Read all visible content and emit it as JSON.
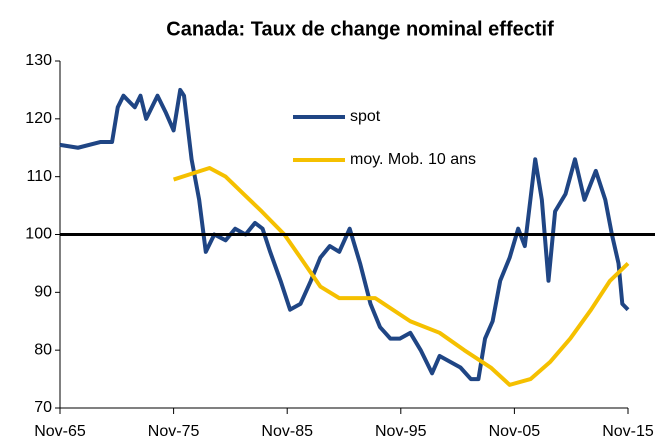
{
  "chart_data": {
    "type": "line",
    "title": "Canada: Taux de change nominal effectif",
    "series": [
      {
        "name": "spot",
        "color": "#1f4584",
        "x": [
          "1965-11",
          "1967-06",
          "1969-06",
          "1970-06",
          "1970-12",
          "1971-06",
          "1972-06",
          "1972-12",
          "1973-06",
          "1974-06",
          "1975-03",
          "1975-11",
          "1976-06",
          "1976-10",
          "1977-06",
          "1978-02",
          "1978-09",
          "1979-06",
          "1980-06",
          "1981-04",
          "1982-03",
          "1983-01",
          "1983-09",
          "1984-05",
          "1985-04",
          "1986-02",
          "1987-01",
          "1987-12",
          "1988-10",
          "1989-08",
          "1990-06",
          "1991-05",
          "1992-04",
          "1993-03",
          "1994-01",
          "1994-12",
          "1995-10",
          "1996-09",
          "1997-08",
          "1998-08",
          "1999-04",
          "2000-03",
          "2001-02",
          "2002-01",
          "2002-09",
          "2003-04",
          "2003-12",
          "2004-08",
          "2005-06",
          "2006-03",
          "2006-10",
          "2007-09",
          "2008-04",
          "2008-11",
          "2009-06",
          "2010-05",
          "2011-03",
          "2012-01",
          "2013-01",
          "2013-11",
          "2014-06",
          "2015-01",
          "2015-05",
          "2015-11"
        ],
        "values": [
          115.5,
          115,
          116,
          116,
          122,
          124,
          122,
          124,
          120,
          124,
          121,
          118,
          125,
          124,
          113,
          106,
          97,
          100,
          99,
          101,
          100,
          102,
          101,
          97,
          92,
          87,
          88,
          92,
          96,
          98,
          97,
          101,
          95,
          88,
          84,
          82,
          82,
          83,
          80,
          76,
          79,
          78,
          77,
          75,
          75,
          82,
          85,
          92,
          96,
          101,
          98,
          113,
          106,
          92,
          104,
          107,
          113,
          106,
          111,
          106,
          100,
          95,
          88,
          87
        ]
      },
      {
        "name": "moy. Mob. 10 ans",
        "color": "#f5c000",
        "x": [
          "1975-11",
          "1977-06",
          "1979-01",
          "1980-06",
          "1982-01",
          "1983-08",
          "1985-08",
          "1987-01",
          "1988-10",
          "1990-06",
          "1993-08",
          "1996-09",
          "1999-04",
          "2001-06",
          "2003-10",
          "2005-06",
          "2007-04",
          "2009-01",
          "2010-10",
          "2012-08",
          "2014-04",
          "2015-11"
        ],
        "values": [
          109.5,
          110.5,
          111.5,
          110,
          107,
          104,
          100,
          96,
          91,
          89,
          89,
          85,
          83,
          80,
          77,
          74,
          75,
          78,
          82,
          87,
          92,
          95
        ]
      }
    ],
    "xlim": [
      "1965-11",
      "2015-11"
    ],
    "xticks": [
      {
        "value": "1965-11",
        "label": "Nov-65"
      },
      {
        "value": "1975-11",
        "label": "Nov-75"
      },
      {
        "value": "1985-11",
        "label": "Nov-85"
      },
      {
        "value": "1995-11",
        "label": "Nov-95"
      },
      {
        "value": "2005-11",
        "label": "Nov-05"
      },
      {
        "value": "2015-11",
        "label": "Nov-15"
      }
    ],
    "ylim": [
      70,
      130
    ],
    "yticks": [
      70,
      80,
      90,
      100,
      110,
      120,
      130
    ],
    "hline": 100,
    "grid": false
  }
}
